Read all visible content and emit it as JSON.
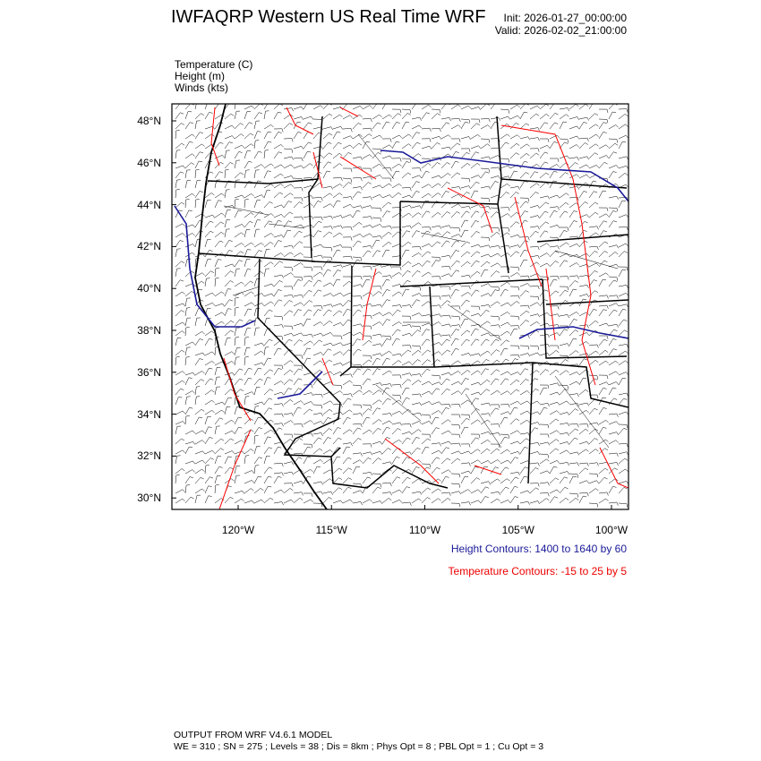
{
  "header": {
    "title": "IWFAQRP Western US Real Time WRF",
    "init": "Init: 2026-01-27_00:00:00",
    "valid": "Valid: 2026-02-02_21:00:00"
  },
  "fields": [
    "Temperature   (C)",
    "Height   (m)",
    "Winds   (kts)"
  ],
  "map": {
    "lat_labels": [
      "48°N",
      "46°N",
      "44°N",
      "42°N",
      "40°N",
      "38°N",
      "36°N",
      "34°N",
      "32°N",
      "30°N"
    ],
    "lon_labels": [
      "120°W",
      "115°W",
      "110°W",
      "105°W",
      "100°W"
    ],
    "colors": {
      "height": "#1a1a99",
      "temperature": "#ff0000",
      "boundaries": "#000000"
    }
  },
  "legend": {
    "height": "Height Contours: 1400 to 1640 by 60",
    "temperature": "Temperature Contours: -15 to 25 by 5"
  },
  "footer": {
    "line1": "OUTPUT FROM WRF V4.6.1 MODEL",
    "line2": "WE = 310 ; SN = 275 ; Levels = 38 ; Dis = 8km ; Phys Opt = 8 ; PBL Opt = 1 ; Cu Opt = 3"
  }
}
